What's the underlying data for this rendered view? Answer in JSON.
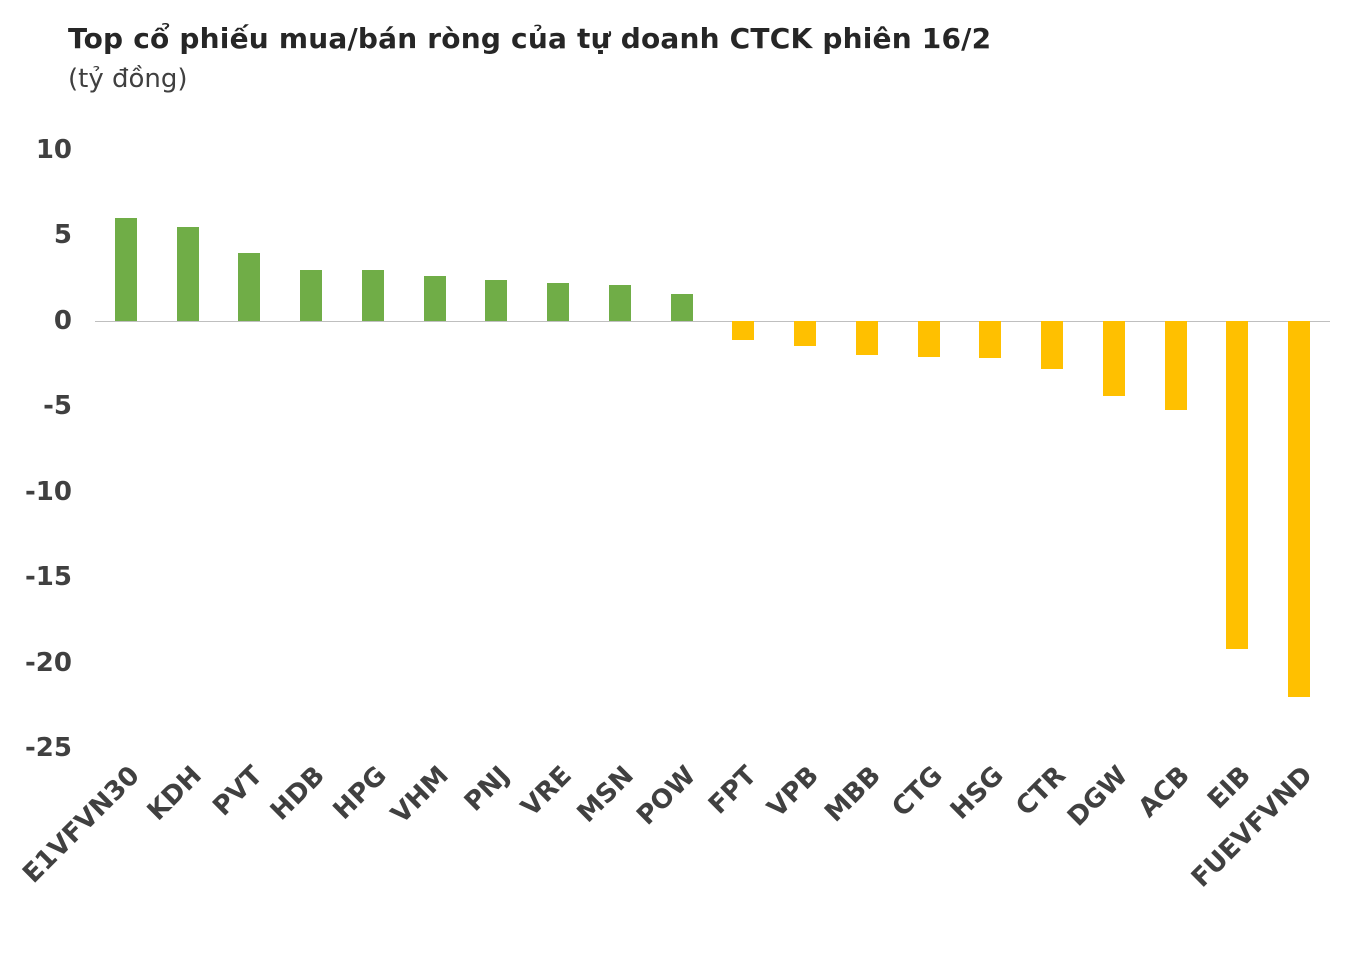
{
  "chart_data": {
    "type": "bar",
    "title": "Top cổ phiếu mua/bán ròng của tự doanh CTCK phiên 16/2",
    "subtitle": "(tỷ đồng)",
    "categories": [
      "E1VFVN30",
      "KDH",
      "PVT",
      "HDB",
      "HPG",
      "VHM",
      "PNJ",
      "VRE",
      "MSN",
      "POW",
      "FPT",
      "VPB",
      "MBB",
      "CTG",
      "HSG",
      "CTR",
      "DGW",
      "ACB",
      "EIB",
      "FUEVFVND"
    ],
    "values": [
      6.0,
      5.5,
      4.0,
      3.0,
      3.0,
      2.6,
      2.4,
      2.2,
      2.1,
      1.6,
      -1.1,
      -1.5,
      -2.0,
      -2.1,
      -2.2,
      -2.8,
      -4.4,
      -5.2,
      -19.2,
      -22.0
    ],
    "y_ticks": [
      10,
      5,
      0,
      -5,
      -10,
      -15,
      -20,
      -25
    ],
    "ylim": [
      10,
      -25
    ],
    "xlabel": "",
    "ylabel": "",
    "grid": false,
    "legend": false,
    "positive_color": "#70AD47",
    "negative_color": "#FFC000",
    "axis_line_color": "#BFBFBF",
    "label_color": "#404040"
  }
}
